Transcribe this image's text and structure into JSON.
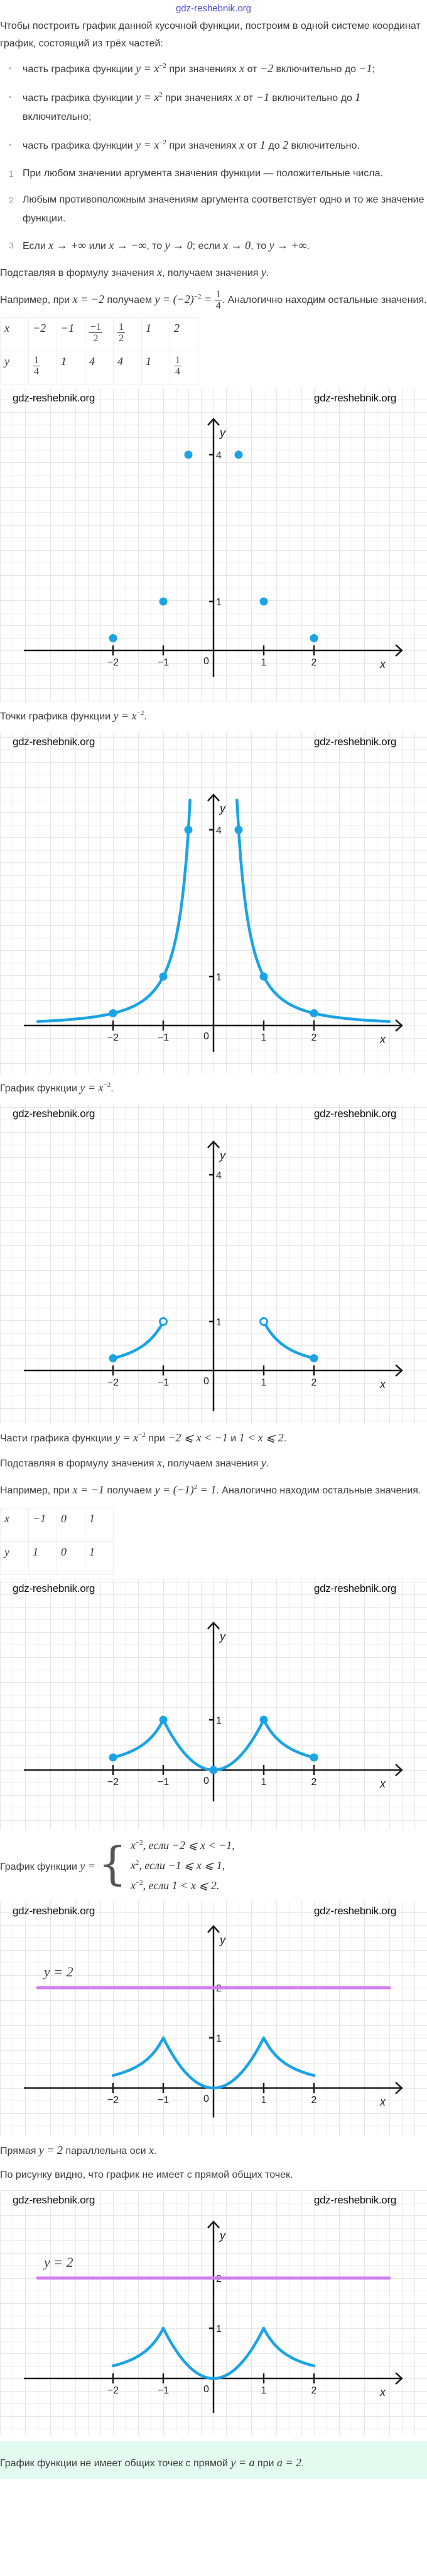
{
  "watermark": "gdz-reshebnik.org",
  "intro": [
    "Чтобы построить график данной кусочной функции, построим в одной системе координат график, состоящий из трёх частей:"
  ],
  "bullets": [
    [
      "часть графика функции ",
      {
        "m": "y = x",
        "sup": "−2"
      },
      " при значениях ",
      {
        "m": "x"
      },
      " от ",
      {
        "m": "−2"
      },
      " включительно до ",
      {
        "m": "−1"
      },
      ";"
    ],
    [
      "часть графика функции ",
      {
        "m": "y = x",
        "sup": "2"
      },
      " при значениях ",
      {
        "m": "x"
      },
      " от ",
      {
        "m": "−1"
      },
      " включительно до ",
      {
        "m": "1"
      },
      " включительно;"
    ],
    [
      "часть графика функции ",
      {
        "m": "y = x",
        "sup": "−2"
      },
      " при значениях ",
      {
        "m": "x"
      },
      " от ",
      {
        "m": "1"
      },
      " до ",
      {
        "m": "2"
      },
      " включительно."
    ]
  ],
  "properties": [
    {
      "index": "1",
      "text": [
        "При любом значении аргумента значения функции — положительные числа."
      ]
    },
    {
      "index": "2",
      "text": [
        "Любым противоположным значениям аргумента соответствует одно и то же значение функции."
      ]
    },
    {
      "index": "3",
      "text": [
        "Если ",
        {
          "m": "x → +∞"
        },
        " или ",
        {
          "m": "x → −∞"
        },
        ", то ",
        {
          "m": "y → 0"
        },
        "; если ",
        {
          "m": "x → 0"
        },
        ", то ",
        {
          "m": "y → +∞"
        },
        "."
      ]
    }
  ],
  "substitute_1": [
    "Подставляя в формулу значения ",
    {
      "m": "x"
    },
    ", получаем значения ",
    {
      "m": "y"
    },
    "."
  ],
  "example_1": [
    "Например, при ",
    {
      "m": "x = −2"
    },
    " получаем ",
    {
      "m": "y = (−2)",
      "sup": "−2"
    },
    {
      "m": " = "
    },
    {
      "frac": [
        "1",
        "4"
      ]
    },
    ". Аналогично находим остальные значения."
  ],
  "table_1": {
    "x": [
      {
        "m": "x"
      },
      {
        "m": "−2"
      },
      {
        "m": "−1"
      },
      {
        "frac": [
          "−1",
          "2"
        ]
      },
      {
        "frac": [
          "1",
          "2"
        ]
      },
      {
        "m": "1"
      },
      {
        "m": "2"
      }
    ],
    "y": [
      {
        "m": "y"
      },
      {
        "frac": [
          "1",
          "4"
        ]
      },
      {
        "m": "1"
      },
      {
        "m": "4"
      },
      {
        "m": "4"
      },
      {
        "m": "1"
      },
      {
        "frac": [
          "1",
          "4"
        ]
      }
    ]
  },
  "caption_1": [
    "Точки графика функции ",
    {
      "m": "y = x",
      "sup": "−2"
    },
    "."
  ],
  "caption_2": [
    "График функции ",
    {
      "m": "y = x",
      "sup": "−2"
    },
    "."
  ],
  "caption_3": [
    "Части графика функции ",
    {
      "m": "y = x",
      "sup": "−2"
    },
    " при ",
    {
      "m": "−2 ⩽ x < −1"
    },
    " и ",
    {
      "m": "1 < x ⩽ 2"
    },
    "."
  ],
  "substitute_2": [
    "Подставляя в формулу значения ",
    {
      "m": "x"
    },
    ", получаем значения ",
    {
      "m": "y"
    },
    "."
  ],
  "example_2": [
    "Например, при ",
    {
      "m": "x = −1"
    },
    " получаем ",
    {
      "m": "y = (−1)",
      "sup": "2"
    },
    {
      "m": " = 1"
    },
    ". Аналогично находим остальные значения."
  ],
  "table_2": {
    "x": [
      {
        "m": "x"
      },
      {
        "m": "−1"
      },
      {
        "m": "0"
      },
      {
        "m": "1"
      }
    ],
    "y": [
      {
        "m": "y"
      },
      {
        "m": "1"
      },
      {
        "m": "0"
      },
      {
        "m": "1"
      }
    ]
  },
  "piecewise": {
    "label": [
      "График функции ",
      {
        "m": "y ="
      }
    ],
    "cases": [
      [
        {
          "m": "x",
          "sup": "−2"
        },
        {
          "m": ", если −2 ⩽ x < −1,"
        }
      ],
      [
        {
          "m": "x",
          "sup": "2"
        },
        {
          "m": ", если −1 ⩽ x ⩽ 1,"
        }
      ],
      [
        {
          "m": "x",
          "sup": "−2"
        },
        {
          "m": ", если 1 < x ⩽ 2."
        }
      ]
    ]
  },
  "line_parallel": [
    "Прямая ",
    {
      "m": "y = 2"
    },
    " параллельна оси ",
    {
      "m": "x"
    },
    "."
  ],
  "no_common": [
    "По рисунку видно, что график не имеет с прямой общих точек."
  ],
  "answer": [
    "График функции не имеет общих точек с прямой ",
    {
      "m": "y = a"
    },
    " при ",
    {
      "m": "a = 2"
    },
    "."
  ],
  "colors": {
    "curve": "#1ba3e6",
    "hline": "#d17ef0",
    "axis": "#1a1a1a",
    "answer_bg": "#e3fbee"
  },
  "chart_data": [
    {
      "type": "scatter",
      "x_label": "x",
      "y_label": "y",
      "origin_label": "0",
      "x_ticks": [
        -2,
        -1,
        1,
        2
      ],
      "x_tick_labels": [
        "−2",
        "−1",
        "1",
        "2"
      ],
      "y_ticks": [
        1,
        4
      ],
      "y_tick_labels": [
        "1",
        "4"
      ],
      "series": [],
      "points": [
        {
          "x": -2,
          "y": 0.25
        },
        {
          "x": -1,
          "y": 1
        },
        {
          "x": -0.5,
          "y": 4
        },
        {
          "x": 0.5,
          "y": 4
        },
        {
          "x": 1,
          "y": 1
        },
        {
          "x": 2,
          "y": 0.25
        }
      ]
    },
    {
      "type": "line",
      "x_label": "x",
      "y_label": "y",
      "origin_label": "0",
      "x_ticks": [
        -2,
        -1,
        1,
        2
      ],
      "x_tick_labels": [
        "−2",
        "−1",
        "1",
        "2"
      ],
      "y_ticks": [
        1,
        4
      ],
      "y_tick_labels": [
        "1",
        "4"
      ],
      "series": [
        {
          "f": "x^-2",
          "domain": [
            -3.5,
            -0.466
          ]
        },
        {
          "f": "x^-2",
          "domain": [
            0.466,
            3.5
          ]
        }
      ],
      "points": [
        {
          "x": -2,
          "y": 0.25
        },
        {
          "x": -1,
          "y": 1
        },
        {
          "x": -0.5,
          "y": 4
        },
        {
          "x": 0.5,
          "y": 4
        },
        {
          "x": 1,
          "y": 1
        },
        {
          "x": 2,
          "y": 0.25
        }
      ]
    },
    {
      "type": "line",
      "x_label": "x",
      "y_label": "y",
      "origin_label": "0",
      "x_ticks": [
        -2,
        -1,
        1,
        2
      ],
      "x_tick_labels": [
        "−2",
        "−1",
        "1",
        "2"
      ],
      "y_ticks": [
        1,
        4
      ],
      "y_tick_labels": [
        "1",
        "4"
      ],
      "series": [
        {
          "f": "x^-2",
          "domain": [
            -2,
            -1
          ]
        },
        {
          "f": "x^-2",
          "domain": [
            1,
            2
          ]
        }
      ],
      "points": [
        {
          "x": -2,
          "y": 0.25
        },
        {
          "x": -1,
          "y": 1,
          "open": true
        },
        {
          "x": 1,
          "y": 1,
          "open": true
        },
        {
          "x": 2,
          "y": 0.25
        }
      ]
    },
    {
      "type": "line",
      "x_label": "x",
      "y_label": "y",
      "origin_label": "0",
      "x_ticks": [
        -2,
        -1,
        1,
        2
      ],
      "x_tick_labels": [
        "−2",
        "−1",
        "1",
        "2"
      ],
      "y_ticks": [
        1
      ],
      "y_tick_labels": [
        "1"
      ],
      "series": [
        {
          "f": "x^-2",
          "domain": [
            -2,
            -1
          ]
        },
        {
          "f": "x^2",
          "domain": [
            -1,
            1
          ]
        },
        {
          "f": "x^-2",
          "domain": [
            1,
            2
          ]
        }
      ],
      "points": [
        {
          "x": -2,
          "y": 0.25
        },
        {
          "x": -1,
          "y": 1
        },
        {
          "x": 0,
          "y": 0
        },
        {
          "x": 1,
          "y": 1
        },
        {
          "x": 2,
          "y": 0.25
        }
      ]
    },
    {
      "type": "line",
      "x_label": "x",
      "y_label": "y",
      "origin_label": "0",
      "x_ticks": [
        -2,
        -1,
        1,
        2
      ],
      "x_tick_labels": [
        "−2",
        "−1",
        "1",
        "2"
      ],
      "y_ticks": [
        1,
        2
      ],
      "y_tick_labels": [
        "1",
        "2"
      ],
      "series": [
        {
          "f": "x^-2",
          "domain": [
            -2,
            -1
          ]
        },
        {
          "f": "x^2",
          "domain": [
            -1,
            1
          ]
        },
        {
          "f": "x^-2",
          "domain": [
            1,
            2
          ]
        }
      ],
      "points": [],
      "hline": {
        "y": 2,
        "label": "y = 2",
        "x_range": [
          -3.5,
          3.5
        ]
      }
    },
    {
      "type": "line",
      "x_label": "x",
      "y_label": "y",
      "origin_label": "0",
      "x_ticks": [
        -2,
        -1,
        1,
        2
      ],
      "x_tick_labels": [
        "−2",
        "−1",
        "1",
        "2"
      ],
      "y_ticks": [
        1,
        2
      ],
      "y_tick_labels": [
        "1",
        "2"
      ],
      "series": [
        {
          "f": "x^-2",
          "domain": [
            -2,
            -1
          ]
        },
        {
          "f": "x^2",
          "domain": [
            -1,
            1
          ]
        },
        {
          "f": "x^-2",
          "domain": [
            1,
            2
          ]
        }
      ],
      "points": [],
      "hline": {
        "y": 2,
        "label": "y = 2",
        "x_range": [
          -3.5,
          3.5
        ]
      }
    }
  ]
}
